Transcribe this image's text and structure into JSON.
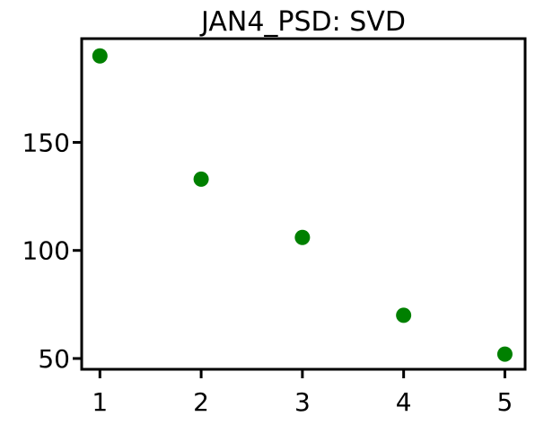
{
  "chart_data": {
    "type": "scatter",
    "title": "JAN4_PSD: SVD",
    "xlabel": "",
    "ylabel": "",
    "x": [
      1,
      2,
      3,
      4,
      5
    ],
    "y": [
      190,
      133,
      106,
      70,
      52
    ],
    "xlim": [
      0.82,
      5.2
    ],
    "ylim": [
      45,
      198
    ],
    "xticks": [
      1,
      2,
      3,
      4,
      5
    ],
    "yticks": [
      50,
      100,
      150
    ],
    "grid": false,
    "marker_color": "#008000"
  }
}
